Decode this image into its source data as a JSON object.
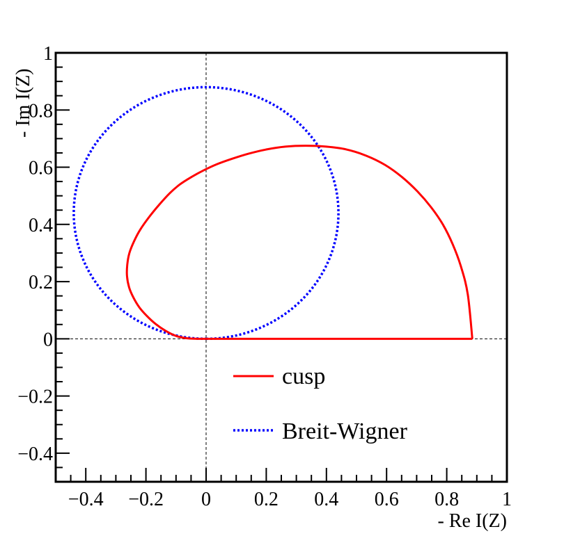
{
  "chart_data": {
    "type": "line",
    "title": "",
    "xlabel": "- Re I(Z)",
    "ylabel": "- Im I(Z)",
    "xlim": [
      -0.5,
      1.0
    ],
    "ylim": [
      -0.5,
      1.0
    ],
    "x_ticks": [
      {
        "value": -0.4,
        "label": "−0.4"
      },
      {
        "value": -0.2,
        "label": "−0.2"
      },
      {
        "value": 0,
        "label": "0"
      },
      {
        "value": 0.2,
        "label": "0.2"
      },
      {
        "value": 0.4,
        "label": "0.4"
      },
      {
        "value": 0.6,
        "label": "0.6"
      },
      {
        "value": 0.8,
        "label": "0.8"
      },
      {
        "value": 1.0,
        "label": "1"
      }
    ],
    "y_ticks": [
      {
        "value": -0.4,
        "label": "−0.4"
      },
      {
        "value": -0.2,
        "label": "−0.2"
      },
      {
        "value": 0,
        "label": "0"
      },
      {
        "value": 0.2,
        "label": "0.2"
      },
      {
        "value": 0.4,
        "label": "0.4"
      },
      {
        "value": 0.6,
        "label": "0.6"
      },
      {
        "value": 0.8,
        "label": "0.8"
      },
      {
        "value": 1.0,
        "label": "1"
      }
    ],
    "x_minor_step": 0.05,
    "y_minor_step": 0.05,
    "reference_lines": {
      "x": 0,
      "y": 0,
      "style": "dashed"
    },
    "legend_position": "bottom-center",
    "series": [
      {
        "name": "cusp",
        "color": "#ff0000",
        "style": "solid",
        "x": [
          0.885,
          0.87,
          0.848,
          0.82,
          0.787,
          0.748,
          0.703,
          0.652,
          0.595,
          0.533,
          0.467,
          0.399,
          0.331,
          0.264,
          0.2,
          0.14,
          0.085,
          0.035,
          -0.01,
          -0.05,
          -0.087,
          -0.12,
          -0.155,
          -0.19,
          -0.22,
          -0.24,
          -0.255,
          -0.262,
          -0.263,
          -0.256,
          -0.242,
          -0.222,
          -0.197,
          -0.168,
          -0.135,
          -0.1,
          -0.065,
          -0.03,
          0.0,
          0.03,
          0.05,
          0.3,
          0.6,
          0.885
        ],
        "y": [
          0.0,
          0.155,
          0.25,
          0.33,
          0.4,
          0.46,
          0.515,
          0.565,
          0.608,
          0.64,
          0.662,
          0.672,
          0.675,
          0.672,
          0.662,
          0.647,
          0.629,
          0.61,
          0.588,
          0.565,
          0.54,
          0.51,
          0.47,
          0.425,
          0.38,
          0.34,
          0.3,
          0.26,
          0.22,
          0.18,
          0.145,
          0.11,
          0.08,
          0.052,
          0.028,
          0.01,
          0.002,
          0.0,
          0.0,
          0.0,
          0.0,
          0.0,
          0.0,
          0.0
        ]
      },
      {
        "name": "Breit-Wigner",
        "color": "#0000ff",
        "style": "dotted",
        "circle": {
          "center": [
            0,
            0.44
          ],
          "radius": 0.44
        }
      }
    ]
  }
}
